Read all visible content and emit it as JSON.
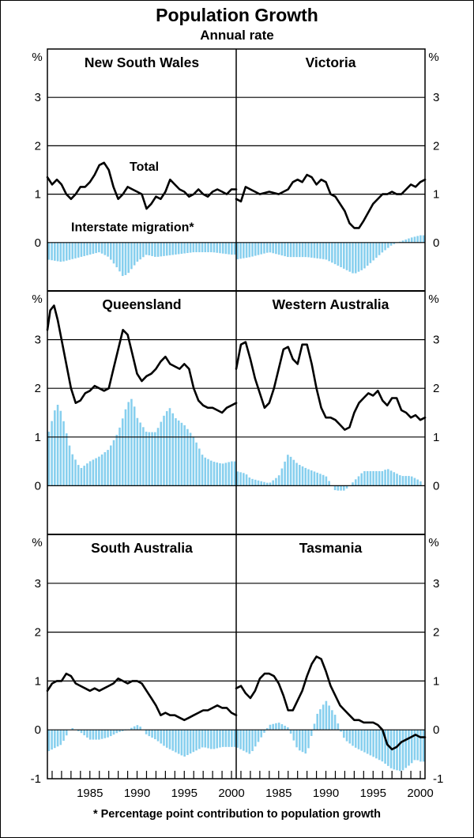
{
  "title": "Population Growth",
  "subtitle": "Annual rate",
  "footnote": "*  Percentage point contribution to population growth",
  "colors": {
    "total_line": "#000000",
    "migration_bars": "#87cfee",
    "frame": "#000000"
  },
  "chart_data": {
    "type": "line+bar",
    "title": "Population Growth",
    "subtitle": "Annual rate",
    "y_unit": "%",
    "x_ticks": [
      "1985",
      "1990",
      "1995",
      "2000"
    ],
    "x_range": [
      1980.5,
      2000.5
    ],
    "series_labels": {
      "total": "Total",
      "migration": "Interstate migration*"
    },
    "panels": [
      {
        "name": "New South Wales",
        "row": 0,
        "col": 0,
        "ylim": [
          -1,
          4
        ],
        "yticks": [
          "3",
          "2",
          "1",
          "0"
        ],
        "ytick_values": [
          3,
          2,
          1,
          0
        ],
        "total": {
          "x": [
            1980.5,
            1981,
            1981.5,
            1982,
            1982.5,
            1983,
            1983.5,
            1984,
            1984.5,
            1985,
            1985.5,
            1986,
            1986.5,
            1987,
            1987.5,
            1988,
            1988.5,
            1989,
            1989.5,
            1990,
            1990.5,
            1991,
            1991.5,
            1992,
            1992.5,
            1993,
            1993.5,
            1994,
            1994.5,
            1995,
            1995.5,
            1996,
            1996.5,
            1997,
            1997.5,
            1998,
            1998.5,
            1999,
            1999.5,
            2000,
            2000.5
          ],
          "y": [
            1.35,
            1.2,
            1.3,
            1.2,
            1.0,
            0.9,
            1.0,
            1.15,
            1.15,
            1.25,
            1.4,
            1.6,
            1.65,
            1.5,
            1.15,
            0.9,
            1.0,
            1.15,
            1.1,
            1.05,
            1.0,
            0.7,
            0.8,
            0.95,
            0.9,
            1.05,
            1.3,
            1.2,
            1.1,
            1.05,
            0.95,
            1.0,
            1.1,
            1.0,
            0.95,
            1.05,
            1.1,
            1.05,
            1.0,
            1.1,
            1.1
          ]
        },
        "migration": {
          "x": [
            1980.5,
            1982,
            1984,
            1986,
            1987,
            1988,
            1988.5,
            1989,
            1990,
            1991,
            1992,
            1994,
            1996,
            1998,
            2000,
            2000.5
          ],
          "y": [
            -0.35,
            -0.4,
            -0.3,
            -0.2,
            -0.3,
            -0.55,
            -0.7,
            -0.65,
            -0.4,
            -0.25,
            -0.3,
            -0.25,
            -0.2,
            -0.2,
            -0.25,
            -0.25
          ]
        }
      },
      {
        "name": "Victoria",
        "row": 0,
        "col": 1,
        "ylim": [
          -1,
          4
        ],
        "yticks": [
          "3",
          "2",
          "1",
          "0"
        ],
        "ytick_values": [
          3,
          2,
          1,
          0
        ],
        "total": {
          "x": [
            1980.5,
            1981,
            1981.5,
            1982,
            1983,
            1984,
            1985,
            1986,
            1986.5,
            1987,
            1987.5,
            1988,
            1988.5,
            1989,
            1989.5,
            1990,
            1990.5,
            1991,
            1992,
            1992.5,
            1993,
            1993.5,
            1994,
            1995,
            1996,
            1996.5,
            1997,
            1997.5,
            1998,
            1999,
            1999.5,
            2000,
            2000.5
          ],
          "y": [
            0.9,
            0.85,
            1.15,
            1.1,
            1.0,
            1.05,
            1.0,
            1.1,
            1.25,
            1.3,
            1.25,
            1.4,
            1.35,
            1.2,
            1.3,
            1.25,
            1.0,
            0.95,
            0.65,
            0.4,
            0.3,
            0.3,
            0.45,
            0.8,
            1.0,
            1.0,
            1.05,
            1.0,
            1.0,
            1.2,
            1.15,
            1.25,
            1.3
          ]
        },
        "migration": {
          "x": [
            1980.5,
            1982,
            1984,
            1986,
            1988,
            1990,
            1992,
            1993,
            1994,
            1996,
            1997,
            1998,
            1999,
            2000,
            2000.5
          ],
          "y": [
            -0.35,
            -0.3,
            -0.2,
            -0.3,
            -0.3,
            -0.35,
            -0.55,
            -0.65,
            -0.55,
            -0.2,
            -0.05,
            0.03,
            0.1,
            0.15,
            0.15
          ]
        }
      },
      {
        "name": "Queensland",
        "row": 1,
        "col": 0,
        "ylim": [
          -1,
          4
        ],
        "yticks": [
          "3",
          "2",
          "1",
          "0"
        ],
        "ytick_values": [
          3,
          2,
          1,
          0
        ],
        "total": {
          "x": [
            1980.5,
            1980.8,
            1981.2,
            1981.6,
            1982,
            1982.5,
            1983,
            1983.5,
            1984,
            1984.5,
            1985,
            1985.5,
            1986,
            1986.5,
            1987,
            1987.5,
            1988,
            1988.5,
            1989,
            1989.5,
            1990,
            1990.5,
            1991,
            1991.5,
            1992,
            1992.5,
            1993,
            1993.5,
            1994,
            1994.5,
            1995,
            1995.5,
            1996,
            1996.5,
            1997,
            1997.5,
            1998,
            1998.5,
            1999,
            1999.5,
            2000,
            2000.5
          ],
          "y": [
            3.2,
            3.6,
            3.7,
            3.4,
            3.0,
            2.5,
            2.0,
            1.7,
            1.75,
            1.9,
            1.95,
            2.05,
            2.0,
            1.95,
            2.0,
            2.4,
            2.8,
            3.2,
            3.1,
            2.7,
            2.3,
            2.15,
            2.25,
            2.3,
            2.4,
            2.55,
            2.65,
            2.5,
            2.45,
            2.4,
            2.5,
            2.4,
            2.0,
            1.75,
            1.65,
            1.6,
            1.6,
            1.55,
            1.5,
            1.6,
            1.65,
            1.7
          ]
        },
        "migration": {
          "x": [
            1980.5,
            1981.5,
            1982,
            1983,
            1984,
            1985,
            1986,
            1987,
            1988,
            1989,
            1989.5,
            1990,
            1991,
            1992,
            1993,
            1993.5,
            1994,
            1995,
            1996,
            1997,
            1998,
            1999,
            2000,
            2000.5
          ],
          "y": [
            1.0,
            1.7,
            1.5,
            0.7,
            0.35,
            0.5,
            0.6,
            0.75,
            1.1,
            1.7,
            1.8,
            1.4,
            1.1,
            1.1,
            1.5,
            1.6,
            1.4,
            1.25,
            1.0,
            0.6,
            0.5,
            0.45,
            0.5,
            0.5
          ]
        }
      },
      {
        "name": "Western Australia",
        "row": 1,
        "col": 1,
        "ylim": [
          -1,
          4
        ],
        "yticks": [
          "3",
          "2",
          "1",
          "0"
        ],
        "ytick_values": [
          3,
          2,
          1,
          0
        ],
        "total": {
          "x": [
            1980.5,
            1981,
            1981.5,
            1982,
            1982.5,
            1983,
            1983.5,
            1984,
            1984.5,
            1985,
            1985.5,
            1986,
            1986.5,
            1987,
            1987.5,
            1988,
            1988.5,
            1989,
            1989.5,
            1990,
            1990.5,
            1991,
            1991.5,
            1992,
            1992.5,
            1993,
            1993.5,
            1994,
            1994.5,
            1995,
            1995.5,
            1996,
            1996.5,
            1997,
            1997.5,
            1998,
            1998.5,
            1999,
            1999.5,
            2000,
            2000.5
          ],
          "y": [
            2.4,
            2.9,
            2.95,
            2.6,
            2.2,
            1.9,
            1.6,
            1.7,
            2.0,
            2.4,
            2.8,
            2.85,
            2.6,
            2.5,
            2.9,
            2.9,
            2.5,
            2.0,
            1.6,
            1.4,
            1.4,
            1.35,
            1.25,
            1.15,
            1.2,
            1.5,
            1.7,
            1.8,
            1.9,
            1.85,
            1.95,
            1.75,
            1.65,
            1.8,
            1.8,
            1.55,
            1.5,
            1.4,
            1.45,
            1.35,
            1.4
          ]
        },
        "migration": {
          "x": [
            1980.5,
            1981.5,
            1982,
            1983,
            1984,
            1985,
            1986,
            1987,
            1988,
            1990,
            1990.5,
            1991,
            1992,
            1993,
            1994,
            1995,
            1996,
            1996.5,
            1997,
            1998,
            1999,
            2000,
            2000.5
          ],
          "y": [
            0.3,
            0.25,
            0.15,
            0.1,
            0.05,
            0.2,
            0.65,
            0.45,
            0.35,
            0.2,
            0.05,
            -0.1,
            -0.1,
            0.1,
            0.3,
            0.3,
            0.3,
            0.35,
            0.3,
            0.2,
            0.2,
            0.1,
            -0.05
          ]
        }
      },
      {
        "name": "South Australia",
        "row": 2,
        "col": 0,
        "ylim": [
          -1,
          4
        ],
        "yticks": [
          "3",
          "2",
          "1",
          "0",
          "-1"
        ],
        "ytick_values": [
          3,
          2,
          1,
          0,
          -1
        ],
        "total": {
          "x": [
            1980.5,
            1981,
            1981.5,
            1982,
            1982.5,
            1983,
            1983.5,
            1984,
            1984.5,
            1985,
            1985.5,
            1986,
            1986.5,
            1987,
            1987.5,
            1988,
            1988.5,
            1989,
            1989.5,
            1990,
            1990.5,
            1991,
            1991.5,
            1992,
            1992.5,
            1993,
            1993.5,
            1994,
            1994.5,
            1995,
            1995.5,
            1996,
            1996.5,
            1997,
            1997.5,
            1998,
            1998.5,
            1999,
            1999.5,
            2000,
            2000.5
          ],
          "y": [
            0.8,
            0.95,
            1.0,
            1.0,
            1.15,
            1.1,
            0.95,
            0.9,
            0.85,
            0.8,
            0.85,
            0.8,
            0.85,
            0.9,
            0.95,
            1.05,
            1.0,
            0.95,
            1.0,
            1.0,
            0.95,
            0.8,
            0.65,
            0.5,
            0.3,
            0.35,
            0.3,
            0.3,
            0.25,
            0.2,
            0.25,
            0.3,
            0.35,
            0.4,
            0.4,
            0.45,
            0.5,
            0.45,
            0.45,
            0.35,
            0.3
          ]
        },
        "migration": {
          "x": [
            1980.5,
            1982,
            1983,
            1984,
            1985,
            1986,
            1987,
            1988,
            1989,
            1990,
            1990.5,
            1991,
            1992,
            1993,
            1994,
            1995,
            1996,
            1997,
            1998,
            1999,
            2000,
            2000.5
          ],
          "y": [
            -0.45,
            -0.3,
            0.05,
            -0.05,
            -0.2,
            -0.2,
            -0.15,
            -0.05,
            0.0,
            0.1,
            0.05,
            -0.1,
            -0.2,
            -0.35,
            -0.45,
            -0.55,
            -0.45,
            -0.35,
            -0.4,
            -0.35,
            -0.35,
            -0.35
          ]
        }
      },
      {
        "name": "Tasmania",
        "row": 2,
        "col": 1,
        "ylim": [
          -1,
          4
        ],
        "yticks": [
          "3",
          "2",
          "1",
          "0",
          "-1"
        ],
        "ytick_values": [
          3,
          2,
          1,
          0,
          -1
        ],
        "total": {
          "x": [
            1980.5,
            1981,
            1981.5,
            1982,
            1982.5,
            1983,
            1983.5,
            1984,
            1984.5,
            1985,
            1985.5,
            1986,
            1986.5,
            1987,
            1987.5,
            1988,
            1988.5,
            1989,
            1989.5,
            1990,
            1990.5,
            1991,
            1991.5,
            1992,
            1992.5,
            1993,
            1993.5,
            1994,
            1994.5,
            1995,
            1995.5,
            1996,
            1996.5,
            1997,
            1997.5,
            1998,
            1998.5,
            1999,
            1999.5,
            2000,
            2000.5
          ],
          "y": [
            0.85,
            0.9,
            0.75,
            0.65,
            0.8,
            1.05,
            1.15,
            1.15,
            1.1,
            0.95,
            0.7,
            0.4,
            0.4,
            0.6,
            0.8,
            1.1,
            1.35,
            1.5,
            1.45,
            1.2,
            0.9,
            0.7,
            0.5,
            0.4,
            0.3,
            0.2,
            0.2,
            0.15,
            0.15,
            0.15,
            0.1,
            0.0,
            -0.3,
            -0.4,
            -0.35,
            -0.25,
            -0.2,
            -0.15,
            -0.1,
            -0.15,
            -0.15
          ]
        },
        "migration": {
          "x": [
            1980.5,
            1981,
            1982,
            1983,
            1984,
            1985,
            1986,
            1987,
            1988,
            1988.5,
            1989,
            1990,
            1991,
            1991.5,
            1992,
            1993,
            1994,
            1995,
            1996,
            1997,
            1998,
            1999,
            1999.5,
            2000,
            2000.5
          ],
          "y": [
            -0.35,
            -0.4,
            -0.5,
            -0.2,
            0.1,
            0.15,
            0.05,
            -0.4,
            -0.5,
            -0.1,
            0.3,
            0.6,
            0.3,
            0.0,
            -0.2,
            -0.35,
            -0.45,
            -0.55,
            -0.65,
            -0.8,
            -0.85,
            -0.7,
            -0.6,
            -0.65,
            -0.65
          ]
        }
      }
    ]
  }
}
